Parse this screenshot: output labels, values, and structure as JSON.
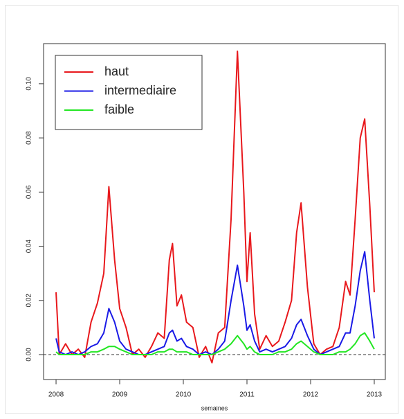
{
  "chart_data": {
    "type": "line",
    "xlabel": "semaines",
    "x": [
      2008.0,
      2008.05,
      2008.15,
      2008.25,
      2008.35,
      2008.45,
      2008.55,
      2008.65,
      2008.75,
      2008.83,
      2008.92,
      2009.0,
      2009.1,
      2009.2,
      2009.3,
      2009.4,
      2009.5,
      2009.6,
      2009.7,
      2009.78,
      2009.83,
      2009.9,
      2009.97,
      2010.05,
      2010.15,
      2010.25,
      2010.35,
      2010.45,
      2010.55,
      2010.65,
      2010.75,
      2010.85,
      2010.95,
      2011.0,
      2011.05,
      2011.12,
      2011.2,
      2011.3,
      2011.4,
      2011.5,
      2011.6,
      2011.7,
      2011.78,
      2011.85,
      2011.95,
      2012.05,
      2012.15,
      2012.25,
      2012.35,
      2012.45,
      2012.55,
      2012.62,
      2012.7,
      2012.78,
      2012.85,
      2012.93,
      2013.0
    ],
    "series": [
      {
        "name": "haut",
        "color": "#e8181c",
        "values": [
          0.023,
          0,
          0.004,
          0,
          0.002,
          -0.001,
          0.012,
          0.019,
          0.03,
          0.062,
          0.035,
          0.017,
          0.01,
          0,
          0.002,
          -0.001,
          0.003,
          0.008,
          0.006,
          0.035,
          0.041,
          0.018,
          0.022,
          0.012,
          0.01,
          -0.001,
          0.003,
          -0.003,
          0.008,
          0.01,
          0.05,
          0.112,
          0.06,
          0.027,
          0.045,
          0.015,
          0.002,
          0.007,
          0.003,
          0.005,
          0.012,
          0.02,
          0.045,
          0.056,
          0.025,
          0.004,
          0,
          0.002,
          0.003,
          0.01,
          0.027,
          0.022,
          0.05,
          0.08,
          0.087,
          0.055,
          0.023
        ]
      },
      {
        "name": "intermediaire",
        "color": "#1a1ae6",
        "values": [
          0.006,
          0.001,
          0,
          0.001,
          0,
          0.001,
          0.003,
          0.004,
          0.008,
          0.017,
          0.012,
          0.005,
          0.002,
          0.001,
          0,
          0,
          0.001,
          0.002,
          0.003,
          0.008,
          0.009,
          0.005,
          0.006,
          0.003,
          0.002,
          0,
          0.001,
          0,
          0.002,
          0.005,
          0.02,
          0.033,
          0.018,
          0.009,
          0.011,
          0.005,
          0.001,
          0.002,
          0.001,
          0.002,
          0.003,
          0.006,
          0.011,
          0.013,
          0.007,
          0.002,
          0,
          0.001,
          0.002,
          0.003,
          0.008,
          0.008,
          0.018,
          0.031,
          0.038,
          0.02,
          0.006
        ]
      },
      {
        "name": "faible",
        "color": "#22e622",
        "values": [
          0.001,
          0,
          0,
          0,
          0,
          0,
          0.001,
          0.001,
          0.002,
          0.003,
          0.003,
          0.002,
          0.001,
          0,
          0,
          0,
          0,
          0.001,
          0.001,
          0.002,
          0.002,
          0.001,
          0.001,
          0.001,
          0,
          0,
          0,
          0,
          0.001,
          0.002,
          0.004,
          0.007,
          0.004,
          0.002,
          0.003,
          0.001,
          0,
          0,
          0,
          0.001,
          0.001,
          0.002,
          0.004,
          0.005,
          0.003,
          0.001,
          0,
          0,
          0,
          0.001,
          0.001,
          0.002,
          0.004,
          0.007,
          0.008,
          0.005,
          0.002
        ]
      }
    ],
    "xlim": [
      2007.804,
      2013.174
    ],
    "ylim": [
      -0.0092,
      0.1148
    ],
    "xticks": [
      2008,
      2009,
      2010,
      2011,
      2012,
      2013
    ],
    "yticks": [
      {
        "value": 0,
        "label": "0.00"
      },
      {
        "value": 0.02,
        "label": "0.02"
      },
      {
        "value": 0.04,
        "label": "0.04"
      },
      {
        "value": 0.06,
        "label": "0.06"
      },
      {
        "value": 0.08,
        "label": "0.08"
      },
      {
        "value": 0.1,
        "label": "0.10"
      }
    ],
    "hline": 0,
    "legend": "top-left",
    "grid": false
  }
}
